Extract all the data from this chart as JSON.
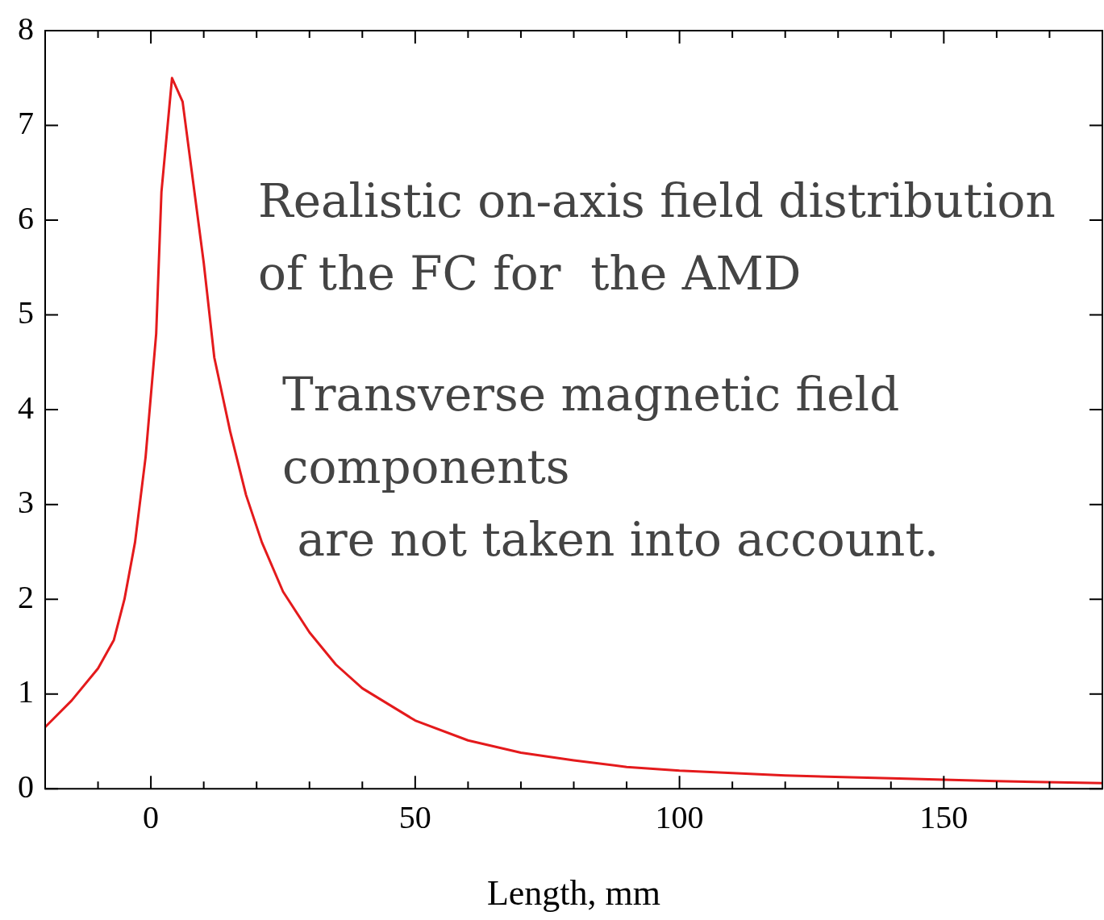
{
  "chart_data": {
    "type": "line",
    "xlabel": "Length, mm",
    "annotations": [
      "Realistic on-axis field distribution\nof the FC for  the AMD",
      "Transverse magnetic field\ncomponents\n are not taken into account."
    ],
    "xlim": [
      -20,
      180
    ],
    "xticks": [
      {
        "value": -20,
        "label": null
      },
      {
        "value": -10,
        "label": null
      },
      0,
      {
        "value": 10,
        "label": null
      },
      {
        "value": 20,
        "label": null
      },
      {
        "value": 30,
        "label": null
      },
      {
        "value": 40,
        "label": null
      },
      50,
      {
        "value": 60,
        "label": null
      },
      {
        "value": 70,
        "label": null
      },
      {
        "value": 80,
        "label": null
      },
      {
        "value": 90,
        "label": null
      },
      100,
      {
        "value": 110,
        "label": null
      },
      {
        "value": 120,
        "label": null
      },
      {
        "value": 130,
        "label": null
      },
      {
        "value": 140,
        "label": null
      },
      150,
      {
        "value": 160,
        "label": null
      },
      {
        "value": 170,
        "label": null
      }
    ],
    "ylim": [
      0,
      8
    ],
    "yticks": [
      0,
      1,
      2,
      3,
      4,
      5,
      6,
      7,
      8
    ],
    "grid": false,
    "legend": false,
    "marker": "none",
    "line_style": "solid",
    "x": [
      -20,
      -15,
      -10,
      -7,
      -5,
      -3,
      -1,
      1,
      2,
      4,
      6,
      8,
      10,
      12,
      15,
      18,
      21,
      25,
      30,
      35,
      40,
      45,
      50,
      60,
      70,
      80,
      90,
      100,
      120,
      140,
      160,
      180
    ],
    "series": [
      {
        "color": "#e41a1c",
        "values": [
          0.65,
          0.93,
          1.27,
          1.57,
          2.0,
          2.6,
          3.5,
          4.8,
          6.3,
          7.5,
          7.25,
          6.4,
          5.55,
          4.55,
          3.77,
          3.1,
          2.6,
          2.08,
          1.65,
          1.31,
          1.06,
          0.89,
          0.72,
          0.51,
          0.38,
          0.3,
          0.23,
          0.19,
          0.14,
          0.11,
          0.08,
          0.06
        ]
      }
    ]
  }
}
